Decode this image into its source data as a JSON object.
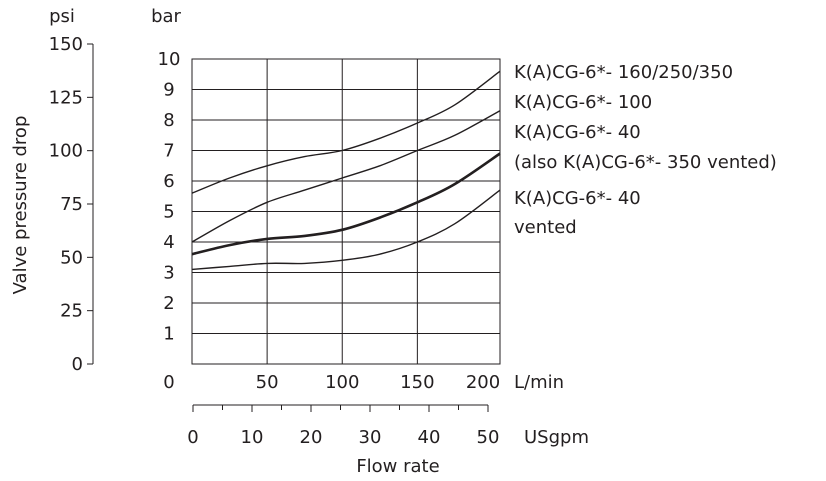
{
  "chart_data": {
    "type": "line",
    "units": {
      "psi": "psi",
      "bar": "bar",
      "lpm": "L/min",
      "gpm": "USgpm"
    },
    "ylabel": "Valve pressure drop",
    "xlabel": "Flow rate",
    "psi_ticks": [
      "150",
      "125",
      "100",
      "75",
      "50",
      "25",
      "0"
    ],
    "bar_ticks": [
      "10",
      "9",
      "8",
      "7",
      "6",
      "5",
      "4",
      "3",
      "2",
      "1"
    ],
    "lpm_ticks": [
      "0",
      "50",
      "100",
      "150",
      "200"
    ],
    "gpm_ticks": [
      "0",
      "10",
      "20",
      "30",
      "40",
      "50"
    ],
    "xlim": [
      0,
      205
    ],
    "ylim": [
      0,
      10
    ],
    "grid": true,
    "series": [
      {
        "labels": [
          "K(A)CG-6*-  160/250/350"
        ],
        "bold": false,
        "x": [
          0,
          25,
          50,
          75,
          100,
          125,
          150,
          175,
          205
        ],
        "y": [
          5.6,
          6.1,
          6.5,
          6.8,
          7.0,
          7.4,
          7.9,
          8.5,
          9.6
        ]
      },
      {
        "labels": [
          "K(A)CG-6*-  100"
        ],
        "bold": false,
        "x": [
          0,
          25,
          50,
          75,
          100,
          125,
          150,
          175,
          205
        ],
        "y": [
          4.0,
          4.7,
          5.3,
          5.7,
          6.1,
          6.5,
          7.0,
          7.5,
          8.3
        ]
      },
      {
        "labels": [
          "K(A)CG-6*-  40",
          "(also K(A)CG-6*-   350  vented)"
        ],
        "bold": true,
        "x": [
          0,
          25,
          50,
          75,
          100,
          125,
          150,
          175,
          205
        ],
        "y": [
          3.6,
          3.9,
          4.1,
          4.2,
          4.4,
          4.8,
          5.3,
          5.9,
          6.9
        ]
      },
      {
        "labels": [
          "K(A)CG-6*-  40",
          "vented"
        ],
        "bold": false,
        "x": [
          0,
          25,
          50,
          75,
          100,
          125,
          150,
          175,
          205
        ],
        "y": [
          3.1,
          3.2,
          3.3,
          3.3,
          3.4,
          3.6,
          4.0,
          4.6,
          5.7
        ]
      }
    ]
  }
}
